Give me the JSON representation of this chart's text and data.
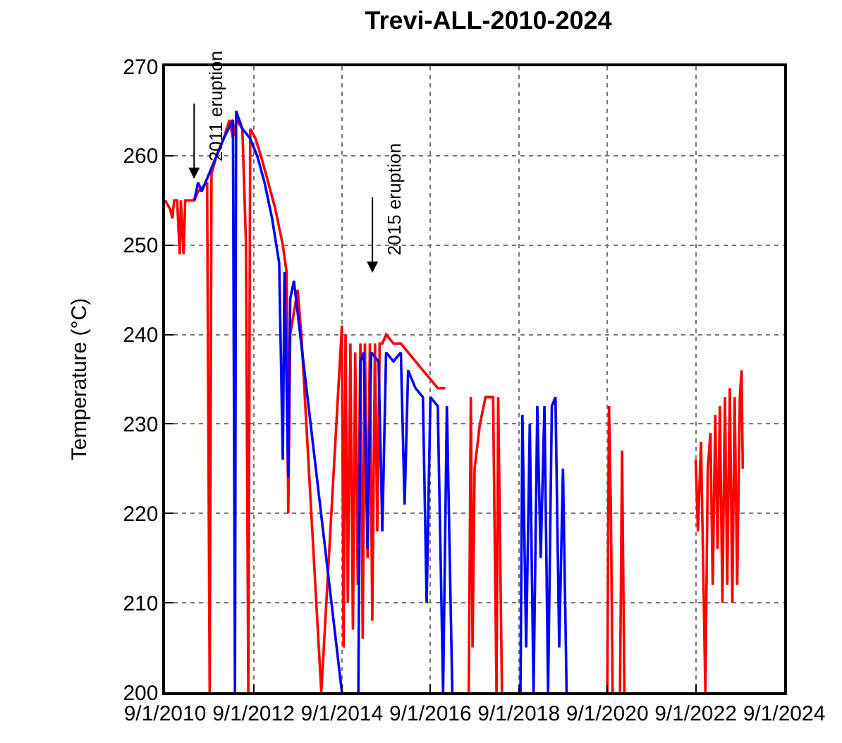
{
  "chart_data": {
    "type": "line",
    "title": "Trevi-ALL-2010-2024",
    "ylabel": "Temperature (°C)",
    "xlim": [
      "2010-09-01",
      "2024-09-01"
    ],
    "xticks": [
      {
        "value": "2010-09-01",
        "label": "9/1/2010"
      },
      {
        "value": "2012-09-01",
        "label": "9/1/2012"
      },
      {
        "value": "2014-09-01",
        "label": "9/1/2014"
      },
      {
        "value": "2016-09-01",
        "label": "9/1/2016"
      },
      {
        "value": "2018-09-01",
        "label": "9/1/2018"
      },
      {
        "value": "2020-09-01",
        "label": "9/1/2020"
      },
      {
        "value": "2022-09-01",
        "label": "9/1/2022"
      },
      {
        "value": "2024-09-01",
        "label": "9/1/2024"
      }
    ],
    "ylim": [
      200,
      270
    ],
    "yticks": [
      200,
      210,
      220,
      230,
      240,
      250,
      260,
      270
    ],
    "grid": true,
    "marker": "none",
    "line_style": "solid",
    "annotations": [
      "2011 eruption",
      "2015 eruption"
    ],
    "series": [
      {
        "color": "#ff0000",
        "x": [
          "2010-09-01",
          "2010-10-15",
          "2010-11-01",
          "2010-11-15",
          "2010-12-10",
          "2011-01-01",
          "2011-01-10",
          "2011-02-01",
          "2011-02-15",
          "2011-03-15",
          "2011-05-01",
          "2011-06-01",
          "2011-08-15",
          "2011-09-05",
          "2011-09-20",
          "2011-11-01",
          "2012-01-01",
          "2012-02-15",
          "2012-03-15",
          "2012-04-15",
          "2012-06-01",
          "2012-07-01",
          "2012-07-20",
          "2012-08-05",
          "2012-09-15",
          "2012-11-01",
          "2013-01-01",
          "2013-03-01",
          "2013-05-01",
          "2013-06-01",
          "2013-06-15",
          "2013-07-01",
          "2013-09-01",
          "2013-10-01",
          "2014-03-15",
          "2014-09-01",
          "2014-09-15",
          "2014-10-01",
          "2014-10-20",
          "2014-11-10",
          "2014-12-01",
          "2014-12-20",
          "2015-01-10",
          "2015-02-01",
          "2015-02-20",
          "2015-03-10",
          "2015-04-01",
          "2015-04-20",
          "2015-05-10",
          "2015-06-01",
          "2015-06-20",
          "2015-07-10",
          "2015-08-01",
          "2015-09-01",
          "2015-11-01",
          "2016-01-01",
          "2016-03-01",
          "2016-05-01",
          "2016-07-01",
          "2016-09-01",
          "2016-11-01",
          "2017-01-01",
          "2017-04-01",
          "2017-07-15",
          "2017-08-01",
          "2017-08-15",
          "2017-09-01",
          "2017-10-15",
          "2017-12-01",
          "2018-02-01",
          "2018-03-01",
          "2018-03-15",
          "2018-04-15",
          "2018-06-01",
          "2020-09-01",
          "2020-09-15",
          "2020-10-01",
          "2020-10-15",
          "2020-11-15",
          "2020-12-15",
          "2021-01-01",
          "2021-01-20",
          "2022-06-01",
          "2022-09-01",
          "2022-09-20",
          "2022-10-15",
          "2022-11-01",
          "2022-11-20",
          "2022-12-10",
          "2023-01-01",
          "2023-01-20",
          "2023-02-10",
          "2023-03-01",
          "2023-03-20",
          "2023-04-10",
          "2023-05-01",
          "2023-05-20",
          "2023-06-10",
          "2023-07-01",
          "2023-07-20",
          "2023-08-10",
          "2023-09-01",
          "2023-09-15",
          "2023-09-25"
        ],
        "values": [
          255,
          254,
          253,
          255,
          255,
          249,
          255,
          249,
          255,
          255,
          255,
          256,
          257,
          200,
          258,
          260,
          262,
          264,
          262,
          264,
          263,
          250,
          200,
          263,
          262,
          260,
          257,
          254,
          250,
          247,
          220,
          240,
          245,
          240,
          200,
          241,
          205,
          240,
          210,
          239,
          207,
          238,
          212,
          239,
          206,
          239,
          215,
          239,
          208,
          239,
          218,
          239,
          239,
          240,
          239,
          239,
          238,
          237,
          236,
          235,
          234,
          234,
          null,
          200,
          233,
          205,
          225,
          230,
          233,
          233,
          200,
          233,
          200,
          null,
          200,
          232,
          220,
          200,
          null,
          200,
          227,
          200,
          null,
          226,
          218,
          228,
          215,
          200,
          225,
          229,
          212,
          231,
          216,
          232,
          210,
          233,
          212,
          234,
          210,
          233,
          212,
          233,
          236,
          225
        ]
      },
      {
        "color": "#0000ff",
        "x": [
          "2011-05-01",
          "2011-06-01",
          "2011-07-01",
          "2011-09-01",
          "2011-11-01",
          "2012-01-01",
          "2012-03-15",
          "2012-04-01",
          "2012-04-10",
          "2012-06-01",
          "2012-08-01",
          "2012-10-01",
          "2012-12-01",
          "2013-02-01",
          "2013-04-01",
          "2013-05-01",
          "2013-05-15",
          "2013-06-15",
          "2013-07-01",
          "2013-08-01",
          "2014-09-01",
          "2014-11-01",
          "2015-01-15",
          "2015-02-01",
          "2015-03-01",
          "2015-04-01",
          "2015-05-01",
          "2015-07-01",
          "2015-08-01",
          "2015-09-01",
          "2015-11-01",
          "2016-01-01",
          "2016-02-01",
          "2016-03-01",
          "2016-05-01",
          "2016-07-01",
          "2016-08-01",
          "2016-09-01",
          "2016-11-01",
          "2016-12-15",
          "2017-01-15",
          "2017-03-01",
          "2017-06-01",
          "2018-09-15",
          "2018-10-01",
          "2018-11-01",
          "2018-12-01",
          "2019-01-01",
          "2019-02-01",
          "2019-03-01",
          "2019-04-01",
          "2019-05-01",
          "2019-06-01",
          "2019-07-01",
          "2019-08-01",
          "2019-09-01",
          "2019-10-01"
        ],
        "values": [
          255,
          257,
          256,
          258,
          260,
          262,
          264,
          200,
          265,
          263,
          262,
          260,
          257,
          253,
          248,
          226,
          247,
          224,
          244,
          246,
          200,
          null,
          200,
          237,
          238,
          216,
          238,
          237,
          218,
          238,
          237,
          238,
          221,
          236,
          234,
          233,
          210,
          233,
          232,
          200,
          232,
          200,
          null,
          200,
          231,
          205,
          230,
          200,
          232,
          215,
          232,
          200,
          232,
          233,
          205,
          225,
          200
        ]
      }
    ]
  }
}
